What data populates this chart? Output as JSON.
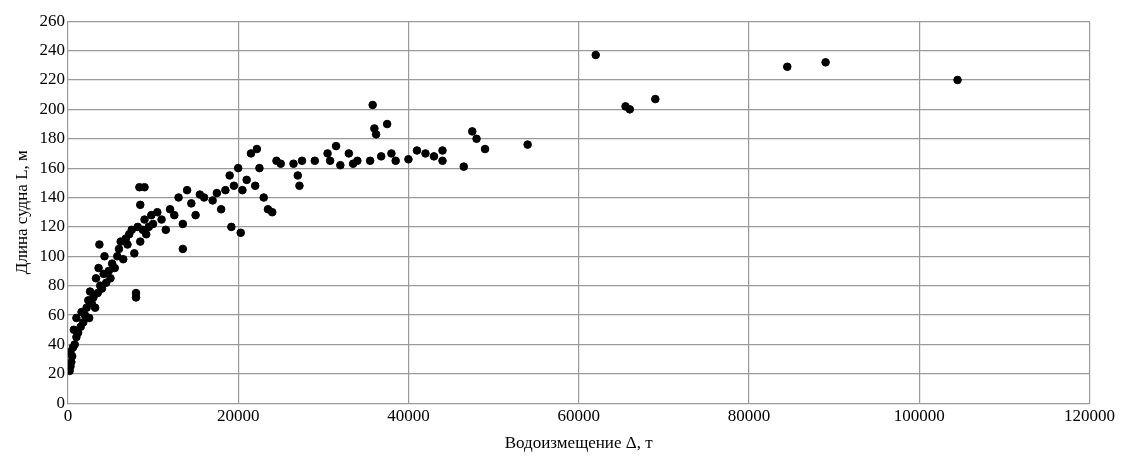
{
  "chart_data": {
    "type": "scatter",
    "xlabel": "Водоизмещение Δ, т",
    "ylabel": "Длина судна L, м",
    "xlim": [
      0,
      120000
    ],
    "xticks": [
      0,
      20000,
      40000,
      60000,
      80000,
      100000,
      120000
    ],
    "ylim": [
      0,
      260
    ],
    "yticks": [
      0,
      20,
      40,
      60,
      80,
      100,
      120,
      140,
      160,
      180,
      200,
      220,
      240,
      260
    ],
    "grid": true,
    "legend": false,
    "marker": "circle",
    "series": [
      {
        "color": "#000000",
        "x": [
          200,
          300,
          400,
          500,
          300,
          600,
          800,
          1000,
          700,
          1200,
          1500,
          1800,
          1000,
          2000,
          1600,
          2200,
          2500,
          2400,
          2800,
          3000,
          2600,
          3200,
          3500,
          3800,
          3300,
          4000,
          4200,
          4500,
          3600,
          4800,
          5000,
          5200,
          5500,
          4300,
          3700,
          5800,
          6000,
          6200,
          6500,
          6800,
          7000,
          7200,
          8000,
          8000,
          7500,
          7800,
          8200,
          8500,
          8800,
          9000,
          9200,
          9500,
          9800,
          10000,
          10500,
          8500,
          9000,
          8400,
          11000,
          11500,
          12000,
          12500,
          13000,
          13500,
          13500,
          14000,
          14500,
          15000,
          15500,
          16000,
          17000,
          17500,
          18000,
          18500,
          19000,
          19200,
          19500,
          20000,
          20300,
          20500,
          21000,
          21500,
          22000,
          22200,
          22500,
          23000,
          23500,
          24000,
          24500,
          25000,
          26500,
          27000,
          27200,
          27500,
          29000,
          30500,
          30800,
          31500,
          32000,
          33000,
          33500,
          34000,
          35500,
          35800,
          36000,
          36200,
          36800,
          37500,
          38000,
          38500,
          40000,
          41000,
          42000,
          43000,
          44000,
          44000,
          46500,
          47500,
          48000,
          49000,
          54000,
          62000,
          65500,
          66000,
          69000,
          84500,
          89000,
          104500
        ],
        "values": [
          22,
          25,
          28,
          32,
          35,
          38,
          40,
          45,
          50,
          48,
          52,
          55,
          58,
          60,
          62,
          65,
          58,
          70,
          68,
          72,
          76,
          65,
          75,
          80,
          85,
          78,
          88,
          82,
          92,
          90,
          85,
          95,
          92,
          100,
          108,
          100,
          105,
          110,
          98,
          112,
          108,
          115,
          75,
          72,
          118,
          102,
          120,
          110,
          118,
          125,
          115,
          120,
          128,
          122,
          130,
          135,
          147,
          147,
          125,
          118,
          132,
          128,
          140,
          105,
          122,
          145,
          136,
          128,
          142,
          140,
          138,
          143,
          132,
          145,
          155,
          120,
          148,
          160,
          116,
          145,
          152,
          170,
          148,
          173,
          160,
          140,
          132,
          130,
          165,
          163,
          163,
          155,
          148,
          165,
          165,
          170,
          165,
          175,
          162,
          170,
          163,
          165,
          165,
          203,
          187,
          183,
          168,
          190,
          170,
          165,
          166,
          172,
          170,
          168,
          165,
          172,
          161,
          185,
          180,
          173,
          176,
          237,
          202,
          200,
          207,
          229,
          232,
          220
        ]
      }
    ]
  }
}
